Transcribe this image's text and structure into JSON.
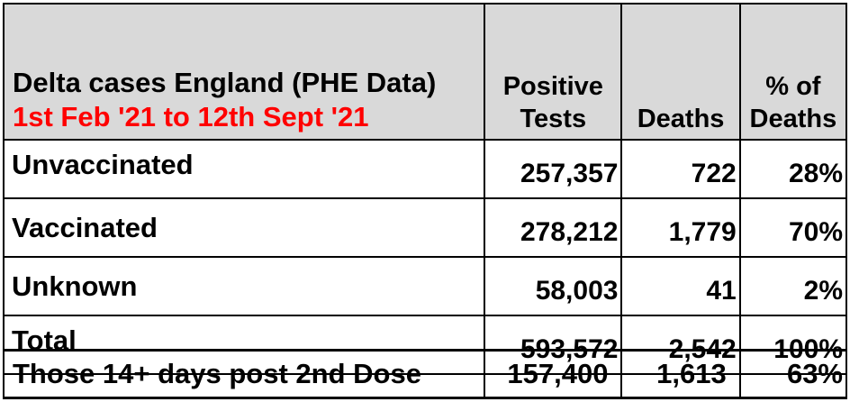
{
  "table": {
    "title": "Delta cases England (PHE Data)",
    "subtitle": "1st Feb '21 to 12th Sept '21",
    "columns": {
      "positive_tests": [
        "Positive",
        "Tests"
      ],
      "deaths": "Deaths",
      "pct_deaths": [
        "% of",
        "Deaths"
      ]
    },
    "rows": [
      {
        "label": "Unvaccinated",
        "positive_tests": "257,357",
        "deaths": "722",
        "pct_deaths": "28%"
      },
      {
        "label": "Vaccinated",
        "positive_tests": "278,212",
        "deaths": "1,779",
        "pct_deaths": "70%"
      },
      {
        "label": "Unknown",
        "positive_tests": "58,003",
        "deaths": "41",
        "pct_deaths": "2%"
      },
      {
        "label": "Total",
        "positive_tests": "593,572",
        "deaths": "2,542",
        "pct_deaths": "100%"
      }
    ],
    "summary": {
      "label": "Those 14+ days post 2nd Dose",
      "positive_tests": "157,400",
      "deaths": "1,613",
      "pct_deaths": "63%"
    },
    "colors": {
      "header_bg": "#d9d9d9",
      "subtitle": "#ff0000",
      "border": "#000000"
    }
  }
}
